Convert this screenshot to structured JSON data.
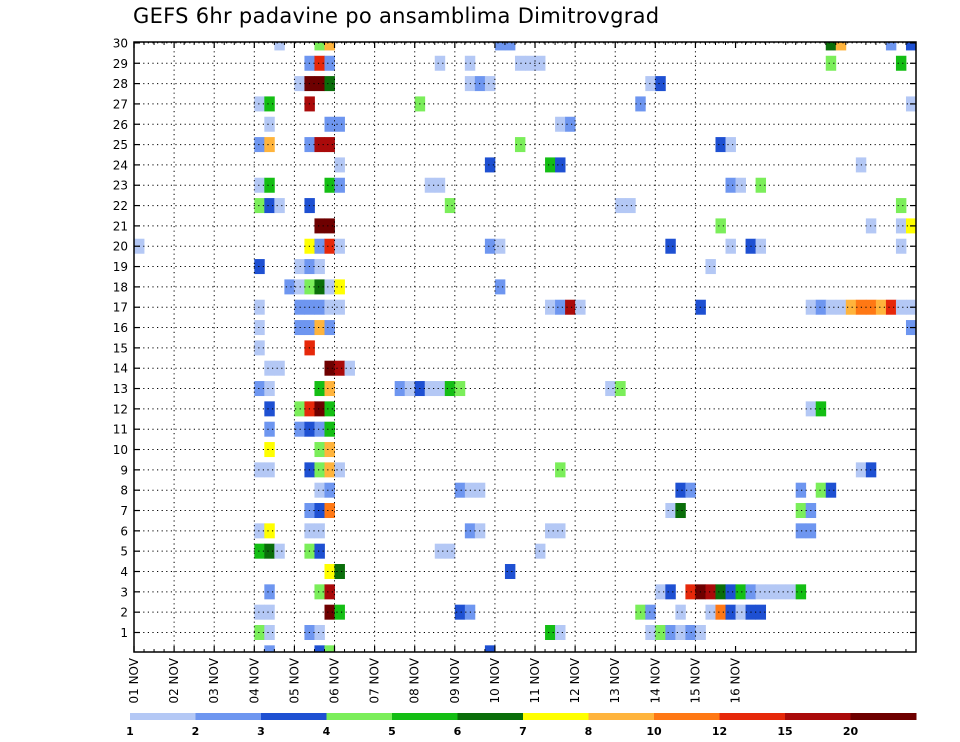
{
  "chart_data": {
    "type": "heatmap",
    "title": "GEFS 6hr padavine po ansamblima Dimitrovgrad",
    "xlabel": "",
    "ylabel": "",
    "x_tick_labels": [
      "01 NOV",
      "02 NOV",
      "03 NOV",
      "04 NOV",
      "05 NOV",
      "06 NOV",
      "07 NOV",
      "08 NOV",
      "09 NOV",
      "10 NOV",
      "11 NOV",
      "12 NOV",
      "13 NOV",
      "14 NOV",
      "15 NOV",
      "16 NOV"
    ],
    "y_tick_labels": [
      "1",
      "2",
      "3",
      "4",
      "5",
      "6",
      "7",
      "8",
      "9",
      "10",
      "11",
      "12",
      "13",
      "14",
      "15",
      "16",
      "17",
      "18",
      "19",
      "20",
      "21",
      "22",
      "23",
      "24",
      "25",
      "26",
      "27",
      "28",
      "29",
      "30"
    ],
    "x_unit": "6-hour step (0 = 01 NOV 00Z)",
    "y_unit": "ensemble member",
    "grid": true,
    "legend_position": "bottom",
    "legend": {
      "bins": [
        "#b4c8f5",
        "#6e96f0",
        "#1e50d2",
        "#7bee5a",
        "#14be14",
        "#0a6e0a",
        "#ffff00",
        "#ffb43c",
        "#ff7814",
        "#e6280a",
        "#aa0a0a",
        "#6e0000"
      ],
      "labels": [
        "1",
        "2",
        "3",
        "4",
        "5",
        "6",
        "7",
        "8",
        "10",
        "12",
        "15",
        "20"
      ]
    },
    "series": [
      {
        "y": 30,
        "cells": [
          [
            14,
            1
          ],
          [
            18,
            4
          ],
          [
            19,
            8
          ],
          [
            36,
            2
          ],
          [
            37,
            2
          ],
          [
            69,
            6
          ],
          [
            70,
            8
          ],
          [
            75,
            2
          ],
          [
            77,
            3
          ]
        ]
      },
      {
        "y": 29,
        "cells": [
          [
            17,
            2
          ],
          [
            18,
            10
          ],
          [
            19,
            2
          ],
          [
            30,
            1
          ],
          [
            33,
            1
          ],
          [
            38,
            1
          ],
          [
            39,
            1
          ],
          [
            40,
            1
          ],
          [
            69,
            4
          ],
          [
            76,
            5
          ]
        ]
      },
      {
        "y": 28,
        "cells": [
          [
            16,
            1
          ],
          [
            17,
            12
          ],
          [
            18,
            12
          ],
          [
            19,
            6
          ],
          [
            33,
            1
          ],
          [
            34,
            2
          ],
          [
            35,
            1
          ],
          [
            51,
            1
          ],
          [
            52,
            3
          ]
        ]
      },
      {
        "y": 27,
        "cells": [
          [
            12,
            1
          ],
          [
            13,
            5
          ],
          [
            17,
            11
          ],
          [
            28,
            4
          ],
          [
            50,
            2
          ],
          [
            77,
            1
          ]
        ]
      },
      {
        "y": 26,
        "cells": [
          [
            13,
            1
          ],
          [
            19,
            2
          ],
          [
            20,
            2
          ],
          [
            42,
            1
          ],
          [
            43,
            2
          ]
        ]
      },
      {
        "y": 25,
        "cells": [
          [
            12,
            2
          ],
          [
            13,
            8
          ],
          [
            17,
            2
          ],
          [
            18,
            11
          ],
          [
            19,
            11
          ],
          [
            38,
            4
          ],
          [
            58,
            3
          ],
          [
            59,
            1
          ]
        ]
      },
      {
        "y": 24,
        "cells": [
          [
            20,
            1
          ],
          [
            35,
            3
          ],
          [
            41,
            5
          ],
          [
            42,
            3
          ],
          [
            72,
            1
          ]
        ]
      },
      {
        "y": 23,
        "cells": [
          [
            12,
            1
          ],
          [
            13,
            5
          ],
          [
            19,
            5
          ],
          [
            20,
            2
          ],
          [
            29,
            1
          ],
          [
            30,
            1
          ],
          [
            59,
            2
          ],
          [
            60,
            1
          ],
          [
            62,
            4
          ]
        ]
      },
      {
        "y": 22,
        "cells": [
          [
            12,
            4
          ],
          [
            13,
            3
          ],
          [
            14,
            1
          ],
          [
            17,
            3
          ],
          [
            31,
            4
          ],
          [
            48,
            1
          ],
          [
            49,
            1
          ],
          [
            76,
            4
          ]
        ]
      },
      {
        "y": 21,
        "cells": [
          [
            18,
            12
          ],
          [
            19,
            12
          ],
          [
            58,
            4
          ],
          [
            73,
            1
          ],
          [
            76,
            1
          ],
          [
            77,
            7
          ]
        ]
      },
      {
        "y": 20,
        "cells": [
          [
            0,
            1
          ],
          [
            17,
            7
          ],
          [
            18,
            2
          ],
          [
            19,
            10
          ],
          [
            20,
            1
          ],
          [
            35,
            2
          ],
          [
            36,
            1
          ],
          [
            53,
            3
          ],
          [
            59,
            1
          ],
          [
            61,
            3
          ],
          [
            62,
            1
          ],
          [
            76,
            1
          ]
        ]
      },
      {
        "y": 19,
        "cells": [
          [
            12,
            3
          ],
          [
            16,
            1
          ],
          [
            17,
            2
          ],
          [
            18,
            1
          ],
          [
            57,
            1
          ]
        ]
      },
      {
        "y": 18,
        "cells": [
          [
            15,
            2
          ],
          [
            16,
            1
          ],
          [
            17,
            4
          ],
          [
            18,
            6
          ],
          [
            19,
            1
          ],
          [
            20,
            7
          ],
          [
            36,
            2
          ]
        ]
      },
      {
        "y": 17,
        "cells": [
          [
            12,
            1
          ],
          [
            16,
            2
          ],
          [
            17,
            2
          ],
          [
            18,
            2
          ],
          [
            19,
            1
          ],
          [
            20,
            1
          ],
          [
            41,
            1
          ],
          [
            42,
            2
          ],
          [
            43,
            11
          ],
          [
            44,
            1
          ],
          [
            56,
            3
          ],
          [
            67,
            1
          ],
          [
            68,
            2
          ],
          [
            69,
            1
          ],
          [
            70,
            1
          ],
          [
            71,
            8
          ],
          [
            72,
            9
          ],
          [
            73,
            9
          ],
          [
            74,
            8
          ],
          [
            75,
            10
          ],
          [
            76,
            1
          ],
          [
            77,
            1
          ]
        ]
      },
      {
        "y": 16,
        "cells": [
          [
            12,
            1
          ],
          [
            16,
            2
          ],
          [
            17,
            2
          ],
          [
            18,
            8
          ],
          [
            19,
            2
          ],
          [
            77,
            2
          ]
        ]
      },
      {
        "y": 15,
        "cells": [
          [
            12,
            1
          ],
          [
            17,
            10
          ]
        ]
      },
      {
        "y": 14,
        "cells": [
          [
            13,
            1
          ],
          [
            14,
            1
          ],
          [
            19,
            12
          ],
          [
            20,
            11
          ],
          [
            21,
            1
          ]
        ]
      },
      {
        "y": 13,
        "cells": [
          [
            12,
            2
          ],
          [
            13,
            1
          ],
          [
            18,
            5
          ],
          [
            19,
            8
          ],
          [
            26,
            2
          ],
          [
            27,
            1
          ],
          [
            28,
            3
          ],
          [
            29,
            1
          ],
          [
            30,
            1
          ],
          [
            31,
            5
          ],
          [
            32,
            4
          ],
          [
            47,
            1
          ],
          [
            48,
            4
          ]
        ]
      },
      {
        "y": 12,
        "cells": [
          [
            13,
            3
          ],
          [
            16,
            4
          ],
          [
            17,
            10
          ],
          [
            18,
            12
          ],
          [
            19,
            5
          ],
          [
            67,
            1
          ],
          [
            68,
            5
          ]
        ]
      },
      {
        "y": 11,
        "cells": [
          [
            13,
            2
          ],
          [
            16,
            2
          ],
          [
            17,
            3
          ],
          [
            18,
            2
          ],
          [
            19,
            5
          ]
        ]
      },
      {
        "y": 10,
        "cells": [
          [
            13,
            7
          ],
          [
            18,
            4
          ],
          [
            19,
            8
          ]
        ]
      },
      {
        "y": 9,
        "cells": [
          [
            12,
            1
          ],
          [
            13,
            1
          ],
          [
            17,
            3
          ],
          [
            18,
            4
          ],
          [
            19,
            8
          ],
          [
            20,
            1
          ],
          [
            42,
            4
          ],
          [
            72,
            1
          ],
          [
            73,
            3
          ]
        ]
      },
      {
        "y": 8,
        "cells": [
          [
            18,
            1
          ],
          [
            19,
            2
          ],
          [
            32,
            2
          ],
          [
            33,
            1
          ],
          [
            34,
            1
          ],
          [
            54,
            3
          ],
          [
            55,
            2
          ],
          [
            66,
            2
          ],
          [
            68,
            4
          ],
          [
            69,
            3
          ]
        ]
      },
      {
        "y": 7,
        "cells": [
          [
            17,
            2
          ],
          [
            18,
            3
          ],
          [
            19,
            9
          ],
          [
            53,
            1
          ],
          [
            54,
            6
          ],
          [
            66,
            4
          ],
          [
            67,
            2
          ]
        ]
      },
      {
        "y": 6,
        "cells": [
          [
            12,
            1
          ],
          [
            13,
            7
          ],
          [
            17,
            1
          ],
          [
            18,
            1
          ],
          [
            33,
            2
          ],
          [
            34,
            1
          ],
          [
            41,
            1
          ],
          [
            42,
            1
          ],
          [
            66,
            2
          ],
          [
            67,
            2
          ]
        ]
      },
      {
        "y": 5,
        "cells": [
          [
            12,
            5
          ],
          [
            13,
            6
          ],
          [
            14,
            1
          ],
          [
            17,
            4
          ],
          [
            18,
            3
          ],
          [
            30,
            1
          ],
          [
            31,
            1
          ],
          [
            40,
            1
          ]
        ]
      },
      {
        "y": 4,
        "cells": [
          [
            19,
            7
          ],
          [
            20,
            6
          ],
          [
            37,
            3
          ]
        ]
      },
      {
        "y": 3,
        "cells": [
          [
            13,
            2
          ],
          [
            18,
            4
          ],
          [
            19,
            11
          ],
          [
            52,
            1
          ],
          [
            53,
            3
          ],
          [
            55,
            10
          ],
          [
            56,
            12
          ],
          [
            57,
            11
          ],
          [
            58,
            6
          ],
          [
            59,
            3
          ],
          [
            60,
            5
          ],
          [
            61,
            2
          ],
          [
            62,
            1
          ],
          [
            63,
            1
          ],
          [
            64,
            1
          ],
          [
            65,
            1
          ],
          [
            66,
            5
          ]
        ]
      },
      {
        "y": 2,
        "cells": [
          [
            12,
            1
          ],
          [
            13,
            1
          ],
          [
            19,
            12
          ],
          [
            20,
            5
          ],
          [
            32,
            3
          ],
          [
            33,
            2
          ],
          [
            50,
            4
          ],
          [
            51,
            2
          ],
          [
            54,
            1
          ],
          [
            57,
            1
          ],
          [
            58,
            9
          ],
          [
            59,
            3
          ],
          [
            60,
            1
          ],
          [
            61,
            3
          ],
          [
            62,
            3
          ]
        ]
      },
      {
        "y": 1,
        "cells": [
          [
            12,
            4
          ],
          [
            13,
            1
          ],
          [
            17,
            2
          ],
          [
            18,
            1
          ],
          [
            41,
            5
          ],
          [
            42,
            1
          ],
          [
            51,
            1
          ],
          [
            52,
            4
          ],
          [
            53,
            2
          ],
          [
            54,
            1
          ],
          [
            55,
            2
          ],
          [
            56,
            1
          ]
        ]
      },
      {
        "y": 0,
        "cells": [
          [
            13,
            2
          ],
          [
            18,
            3
          ],
          [
            19,
            4
          ],
          [
            35,
            3
          ]
        ]
      }
    ]
  }
}
